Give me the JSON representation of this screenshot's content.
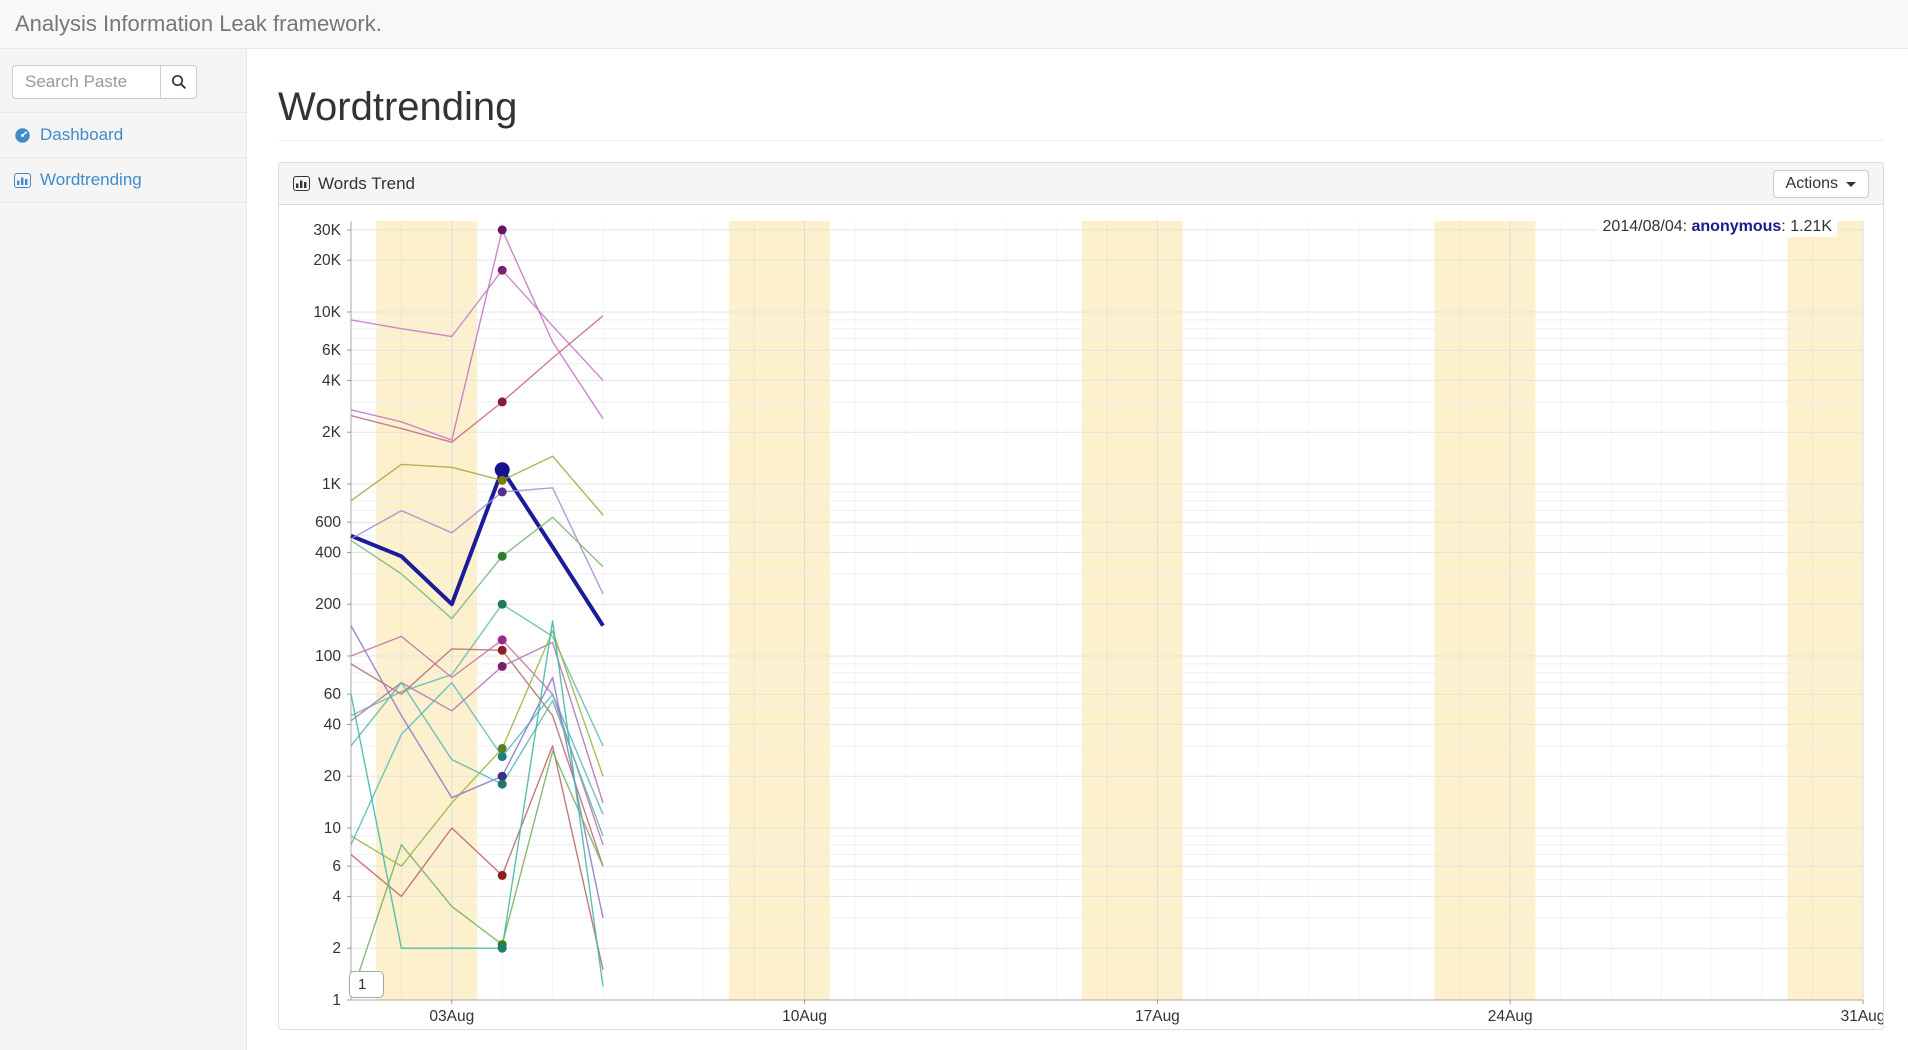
{
  "navbar": {
    "brand": "Analysis Information Leak framework."
  },
  "sidebar": {
    "search": {
      "placeholder": "Search Paste",
      "value": ""
    },
    "items": [
      {
        "label": "Dashboard",
        "icon": "dashboard-icon"
      },
      {
        "label": "Wordtrending",
        "icon": "bar-chart-icon"
      }
    ]
  },
  "page": {
    "title": "Wordtrending"
  },
  "panel": {
    "title": "Words Trend",
    "icon": "bar-chart-icon",
    "actions_label": "Actions",
    "page_button_label": "1"
  },
  "chart_data": {
    "type": "line",
    "title": "Words Trend",
    "y_axis": {
      "scale": "log",
      "range": [
        1,
        33000
      ],
      "ticks": [
        [
          1,
          "1"
        ],
        [
          2,
          "2"
        ],
        [
          4,
          "4"
        ],
        [
          6,
          "6"
        ],
        [
          10,
          "10"
        ],
        [
          20,
          "20"
        ],
        [
          40,
          "40"
        ],
        [
          60,
          "60"
        ],
        [
          100,
          "100"
        ],
        [
          200,
          "200"
        ],
        [
          400,
          "400"
        ],
        [
          600,
          "600"
        ],
        [
          1000,
          "1K"
        ],
        [
          2000,
          "2K"
        ],
        [
          4000,
          "4K"
        ],
        [
          6000,
          "6K"
        ],
        [
          10000,
          "10K"
        ],
        [
          20000,
          "20K"
        ],
        [
          30000,
          "30K"
        ]
      ]
    },
    "x_axis": {
      "month": "2014/08",
      "range_days": [
        1,
        31
      ],
      "tick_days": [
        3,
        10,
        17,
        24,
        31
      ],
      "tick_labels": [
        "03Aug",
        "10Aug",
        "17Aug",
        "24Aug",
        "31Aug"
      ]
    },
    "weekend_bands_days": [
      [
        2,
        3
      ],
      [
        9,
        10
      ],
      [
        16,
        17
      ],
      [
        23,
        24
      ],
      [
        30,
        31
      ]
    ],
    "band_color": "#fcf0cd",
    "grid": true,
    "legend_position": "none",
    "highlight_day": 4,
    "tooltip": {
      "date_part": "2014/08/04: ",
      "series_part": "anonymous",
      "value_part": ": 1.21K",
      "series_color": "#1a1a8c"
    },
    "data_days": [
      1,
      2,
      3,
      4,
      5,
      6
    ],
    "series": [
      {
        "name": "anonymous",
        "color": "#1c1c99",
        "dot_color": "#14148c",
        "width": 4,
        "values": [
          500,
          380,
          200,
          1210,
          430,
          150
        ]
      },
      {
        "color": "#c87ec8",
        "dot_color": "#7c1f7c",
        "values": [
          9000,
          8000,
          7200,
          17500,
          8300,
          4000
        ]
      },
      {
        "color": "#c678c6",
        "dot_color": "#6a1164",
        "values": [
          2700,
          2300,
          1800,
          30000,
          6700,
          2400
        ]
      },
      {
        "color": "#c4708c",
        "dot_color": "#8b1a3a",
        "values": [
          2500,
          2100,
          1750,
          3000,
          5400,
          9500
        ]
      },
      {
        "color": "#aaaa44",
        "dot_color": "#7d7d00",
        "values": [
          800,
          1300,
          1250,
          1050,
          1450,
          660
        ]
      },
      {
        "color": "#a98fd0",
        "dot_color": "#5b2d8e",
        "values": [
          480,
          700,
          520,
          900,
          950,
          230
        ]
      },
      {
        "color": "#7cb87c",
        "dot_color": "#2e7d32",
        "values": [
          470,
          300,
          165,
          380,
          640,
          330
        ]
      },
      {
        "color": "#6cbfa8",
        "dot_color": "#1f7a5c",
        "values": [
          45,
          62,
          78,
          200,
          130,
          30
        ]
      },
      {
        "color": "#c873a8",
        "dot_color": "#a0268c",
        "values": [
          100,
          130,
          75,
          124,
          60,
          8
        ]
      },
      {
        "color": "#bd7272",
        "dot_color": "#8b2020",
        "values": [
          90,
          60,
          110,
          108,
          45,
          6
        ]
      },
      {
        "color": "#b07ab0",
        "dot_color": "#7a1f6e",
        "values": [
          42,
          70,
          48,
          87,
          120,
          14
        ]
      },
      {
        "color": "#9ab84e",
        "dot_color": "#5f7d1f",
        "values": [
          9,
          6,
          14,
          29,
          140,
          20
        ]
      },
      {
        "color": "#5fbcbc",
        "dot_color": "#1f7d7d",
        "values": [
          8,
          35,
          70,
          26,
          60,
          12
        ]
      },
      {
        "color": "#8f7cc9",
        "dot_color": "#3c2d8e",
        "values": [
          150,
          45,
          15,
          20,
          75,
          3
        ]
      },
      {
        "color": "#62b8ae",
        "dot_color": "#20796f",
        "values": [
          30,
          70,
          25,
          18,
          55,
          9
        ]
      },
      {
        "color": "#bd6a6a",
        "dot_color": "#8e1f1f",
        "values": [
          7,
          4,
          10,
          5.3,
          30,
          1.5
        ]
      },
      {
        "color": "#7ab464",
        "dot_color": "#3a7d1f",
        "values": [
          1.05,
          8,
          3.5,
          2.1,
          28,
          6
        ]
      },
      {
        "color": "#46b8a8",
        "dot_color": "#1f7d6f",
        "values": [
          60,
          2,
          2,
          2,
          160,
          1.2
        ]
      }
    ]
  }
}
